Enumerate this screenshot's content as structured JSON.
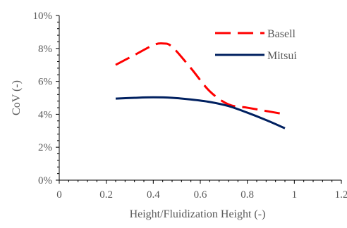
{
  "chart_data": {
    "type": "line",
    "title": "",
    "xlabel": "Height/Fluidization Height (-)",
    "ylabel": "CoV (-)",
    "xlim": [
      0,
      1.2
    ],
    "ylim": [
      0,
      0.1
    ],
    "x_ticks": [
      0,
      0.2,
      0.4,
      0.6,
      0.8,
      1.0,
      1.2
    ],
    "x_tick_labels": [
      "0",
      "0.2",
      "0.4",
      "0.6",
      "0.8",
      "1",
      "1.2"
    ],
    "y_ticks": [
      0,
      0.02,
      0.04,
      0.06,
      0.08,
      0.1
    ],
    "y_tick_labels": [
      "0%",
      "2%",
      "4%",
      "6%",
      "8%",
      "10%"
    ],
    "grid": false,
    "legend_position": "top-right",
    "series": [
      {
        "name": "Basell",
        "color": "#ff0000",
        "style": "dashed",
        "x": [
          0.24,
          0.32,
          0.4,
          0.44,
          0.48,
          0.56,
          0.64,
          0.72,
          0.8,
          0.88,
          0.96
        ],
        "y": [
          0.07,
          0.076,
          0.082,
          0.083,
          0.081,
          0.068,
          0.054,
          0.046,
          0.044,
          0.042,
          0.04
        ]
      },
      {
        "name": "Mitsui",
        "color": "#002060",
        "style": "solid",
        "x": [
          0.24,
          0.32,
          0.4,
          0.48,
          0.56,
          0.64,
          0.72,
          0.8,
          0.88,
          0.96
        ],
        "y": [
          0.0495,
          0.05,
          0.0503,
          0.05,
          0.049,
          0.0475,
          0.045,
          0.041,
          0.0365,
          0.0315
        ]
      }
    ]
  }
}
